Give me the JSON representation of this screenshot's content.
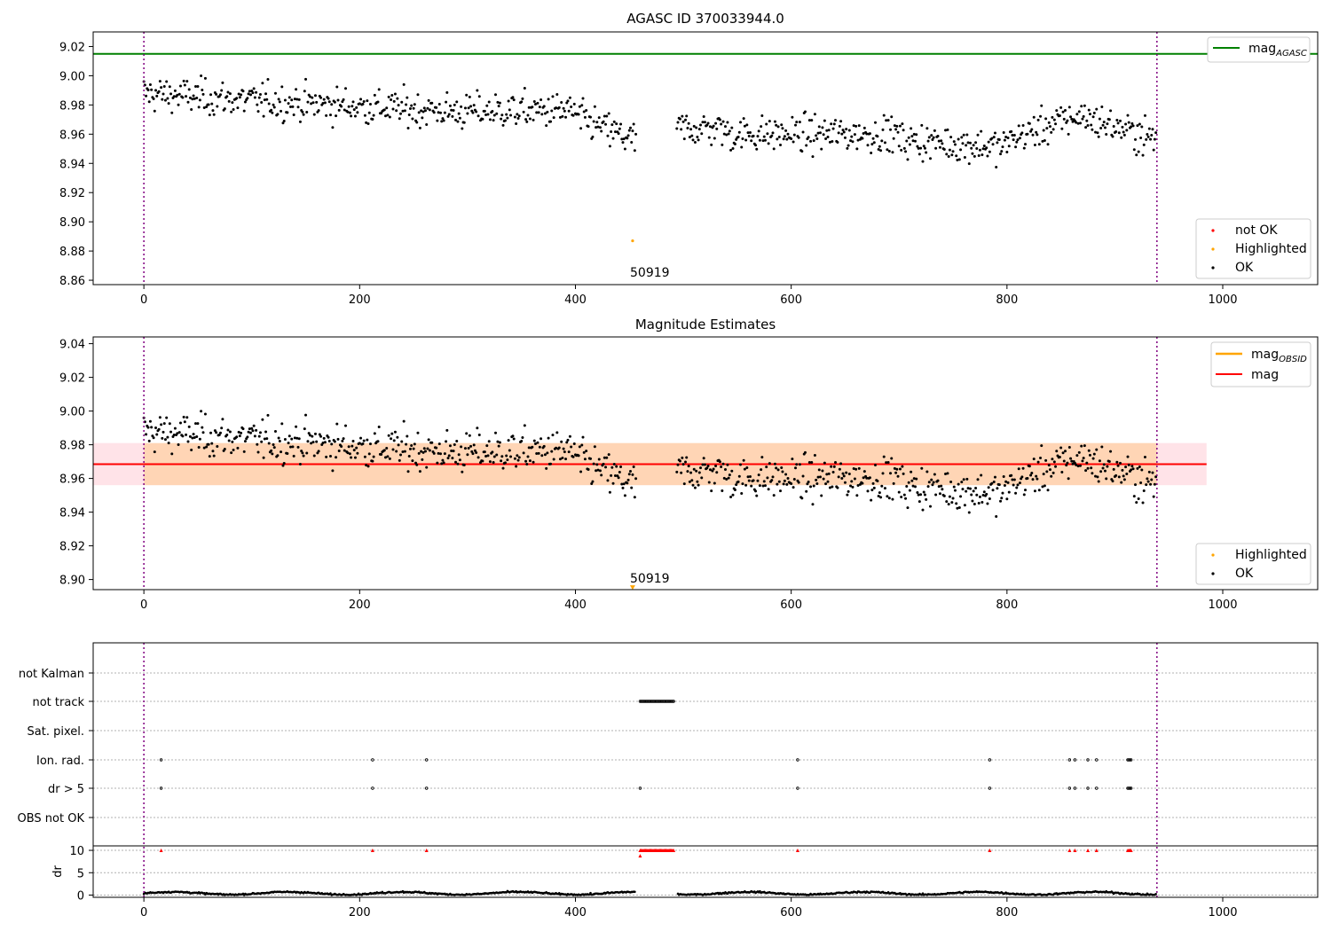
{
  "chart_data": [
    {
      "type": "scatter",
      "title": "AGASC ID 370033944.0",
      "xlim": [
        -47,
        1088
      ],
      "ylim": [
        8.857,
        9.03
      ],
      "xticks": [
        0,
        200,
        400,
        600,
        800,
        1000
      ],
      "yticks": [
        8.86,
        8.88,
        8.9,
        8.92,
        8.94,
        8.96,
        8.98,
        9.0,
        9.02
      ],
      "hline": {
        "name": "mag_AGASC",
        "value": 9.015,
        "color": "#008000"
      },
      "vlines": [
        0,
        939
      ],
      "vline_color": "#800080",
      "highlighted_point": {
        "x": 453,
        "y": 8.887,
        "label": "50919"
      },
      "series": [
        {
          "name": "not OK",
          "color": "#ff0000",
          "points": []
        },
        {
          "name": "Highlighted",
          "color": "#ffa500",
          "points": [
            [
              453,
              8.887
            ]
          ]
        },
        {
          "name": "OK",
          "color": "#000000",
          "description": "~930 photometry points",
          "n_points": 930
        }
      ],
      "legends": {
        "line": [
          {
            "label": "mag",
            "sub": "AGASC",
            "color": "#008000"
          }
        ],
        "marker": [
          {
            "label": "not OK",
            "color": "#ff0000"
          },
          {
            "label": "Highlighted",
            "color": "#ffa500"
          },
          {
            "label": "OK",
            "color": "#000000"
          }
        ]
      }
    },
    {
      "type": "scatter",
      "title": "Magnitude Estimates",
      "xlim": [
        -47,
        1088
      ],
      "ylim": [
        8.894,
        9.044
      ],
      "xticks": [
        0,
        200,
        400,
        600,
        800,
        1000
      ],
      "yticks": [
        8.9,
        8.92,
        8.94,
        8.96,
        8.98,
        9.0,
        9.02,
        9.04
      ],
      "mag": {
        "value": 8.9685,
        "band": [
          8.956,
          8.981
        ],
        "color": "#ff0000"
      },
      "mag_obsid": {
        "value": 8.9685,
        "band": [
          8.956,
          8.981
        ],
        "color": "#ffa500"
      },
      "band_x_range": [
        0,
        985
      ],
      "vlines": [
        0,
        939
      ],
      "highlighted_point": {
        "x": 453,
        "y": 8.895,
        "label": "50919"
      },
      "legends": {
        "line": [
          {
            "label": "mag",
            "sub": "OBSID",
            "color": "#ffa500"
          },
          {
            "label": "mag",
            "sub": "",
            "color": "#ff0000"
          }
        ],
        "marker": [
          {
            "label": "Highlighted",
            "color": "#ffa500"
          },
          {
            "label": "OK",
            "color": "#000000"
          }
        ]
      }
    },
    {
      "type": "scatter",
      "title": "",
      "xlim": [
        -47,
        1088
      ],
      "xticks": [
        0,
        200,
        400,
        600,
        800,
        1000
      ],
      "flag_rows": [
        "not Kalman",
        "not track",
        "Sat. pixel.",
        "Ion. rad.",
        "dr > 5",
        "OBS not OK"
      ],
      "flags": {
        "not Kalman": [],
        "not track": [
          460,
          461,
          462,
          463,
          464,
          465,
          466,
          467,
          468,
          469,
          470,
          471,
          472,
          473,
          474,
          475,
          476,
          477,
          478,
          479,
          480,
          481,
          482,
          483,
          484,
          485,
          486,
          487,
          488,
          489,
          490,
          491
        ],
        "Sat. pixel.": [],
        "Ion. rad.": [
          16,
          212,
          262,
          606,
          784,
          858,
          863,
          875,
          883,
          912,
          913,
          914,
          915
        ],
        "dr > 5": [
          16,
          212,
          262,
          460,
          606,
          784,
          858,
          863,
          875,
          883,
          912,
          913,
          914,
          915
        ],
        "OBS not OK": []
      },
      "dr_panel": {
        "ylabel": "dr",
        "ylim": [
          -0.5,
          11
        ],
        "yticks": [
          0,
          5,
          10
        ],
        "baseline_mean": 0.4,
        "capped_points_x": [
          16,
          212,
          262,
          606,
          784,
          858,
          863,
          875,
          883,
          912,
          913,
          914,
          915
        ],
        "capped_value": 10,
        "gap_range": [
          456,
          494
        ]
      }
    }
  ]
}
